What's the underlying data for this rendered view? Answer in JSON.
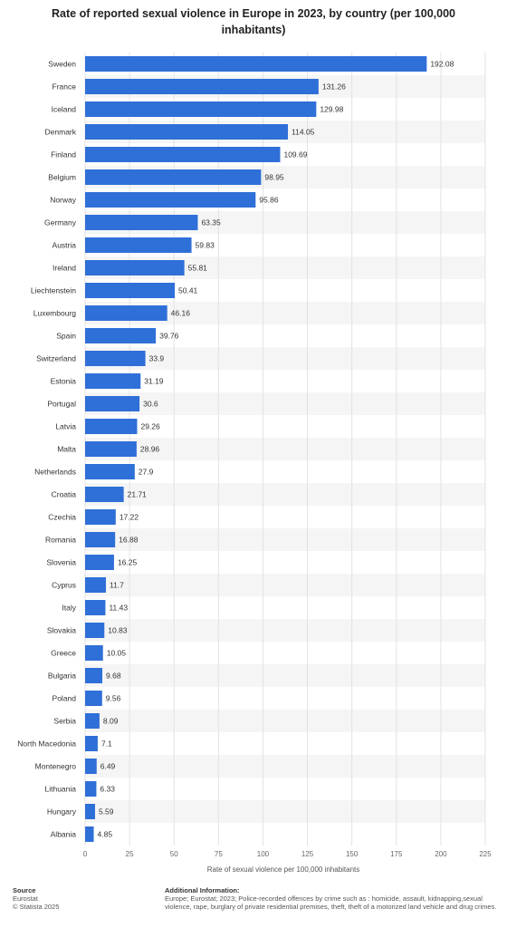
{
  "chart_data": {
    "type": "bar",
    "orientation": "horizontal",
    "title": "Rate of reported sexual violence in Europe in 2023, by country (per 100,000 inhabitants)",
    "xlabel": "Rate of sexual violence per 100,000 inhabitants",
    "ylabel": "",
    "xlim": [
      0,
      225
    ],
    "xticks": [
      0,
      25,
      50,
      75,
      100,
      125,
      150,
      175,
      200,
      225
    ],
    "grid": true,
    "bar_color": "#2f6fd8",
    "categories": [
      "Sweden",
      "France",
      "Iceland",
      "Denmark",
      "Finland",
      "Belgium",
      "Norway",
      "Germany",
      "Austria",
      "Ireland",
      "Liechtenstein",
      "Luxembourg",
      "Spain",
      "Switzerland",
      "Estonia",
      "Portugal",
      "Latvia",
      "Malta",
      "Netherlands",
      "Croatia",
      "Czechia",
      "Romania",
      "Slovenia",
      "Cyprus",
      "Italy",
      "Slovakia",
      "Greece",
      "Bulgaria",
      "Poland",
      "Serbia",
      "North Macedonia",
      "Montenegro",
      "Lithuania",
      "Hungary",
      "Albania"
    ],
    "values": [
      192.08,
      131.26,
      129.98,
      114.05,
      109.69,
      98.95,
      95.86,
      63.35,
      59.83,
      55.81,
      50.41,
      46.16,
      39.76,
      33.9,
      31.19,
      30.6,
      29.26,
      28.96,
      27.9,
      21.71,
      17.22,
      16.88,
      16.25,
      11.7,
      11.43,
      10.83,
      10.05,
      9.68,
      9.56,
      8.09,
      7.1,
      6.49,
      6.33,
      5.59,
      4.85
    ],
    "value_labels": [
      "192.08",
      "131.26",
      "129.98",
      "114.05",
      "109.69",
      "98.95",
      "95.86",
      "63.35",
      "59.83",
      "55.81",
      "50.41",
      "46.16",
      "39.76",
      "33.9",
      "31.19",
      "30.6",
      "29.26",
      "28.96",
      "27.9",
      "21.71",
      "17.22",
      "16.88",
      "16.25",
      "11.7",
      "11.43",
      "10.83",
      "10.05",
      "9.68",
      "9.56",
      "8.09",
      "7.1",
      "6.49",
      "6.33",
      "5.59",
      "4.85"
    ]
  },
  "footer": {
    "source_heading": "Source",
    "source_name": "Eurostat",
    "copyright": "© Statista 2025",
    "info_heading": "Additional Information:",
    "info_text": "Europe; Eurostat; 2023; Police-recorded offences by crime such as : homicide, assault, kidnapping,sexual violence, rape, burglary of private residential premises, theft, theft of a motorized land vehicle and drug crimes."
  }
}
